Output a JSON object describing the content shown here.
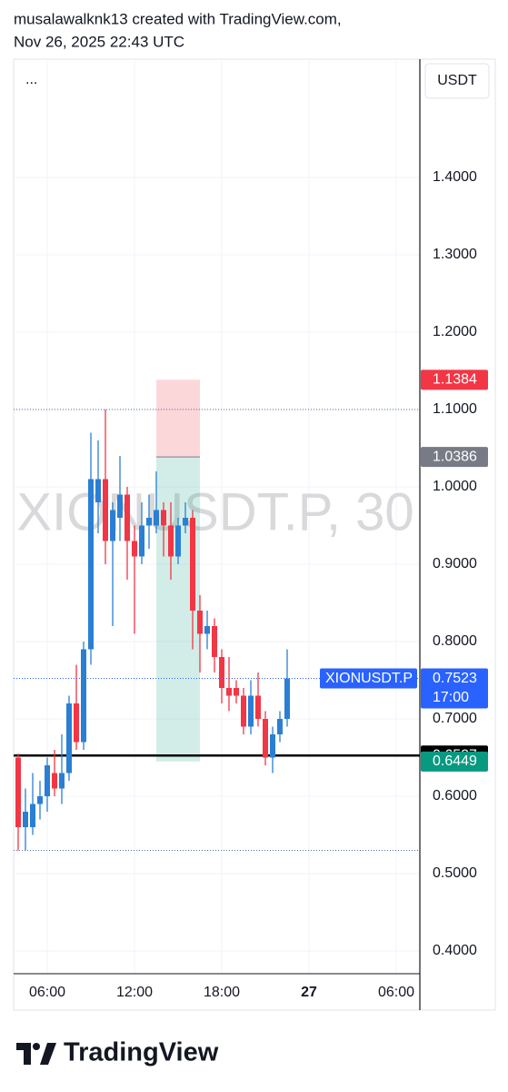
{
  "header_lines": [
    "musalawalknk13 created with TradingView.com,",
    "Nov 26, 2025 22:43 UTC"
  ],
  "logo_text": "TradingView",
  "chart_data": {
    "type": "candlestick",
    "currency": "USDT",
    "menu": "...",
    "watermark": "XIONUSDT.P, 30",
    "symbol": "XIONUSDT.P",
    "countdown": "17:00",
    "up_color": "#2a7fd4",
    "down_color": "#f23645",
    "grid": true,
    "x": [
      4,
      4.5,
      5,
      5.5,
      6,
      6.5,
      7,
      7.5,
      8,
      8.5,
      9,
      9.5,
      10,
      10.5,
      11,
      11.5,
      12,
      12.5,
      13,
      13.5,
      14,
      14.5,
      15,
      15.5,
      16,
      16.5,
      17,
      17.5,
      18,
      18.5,
      19,
      19.5,
      20,
      20.5,
      21,
      21.5,
      22,
      22.5
    ],
    "open": [
      0.65,
      0.56,
      0.56,
      0.59,
      0.6,
      0.63,
      0.61,
      0.63,
      0.72,
      0.67,
      0.79,
      0.98,
      1.01,
      0.93,
      0.96,
      0.99,
      0.93,
      0.91,
      0.95,
      0.95,
      0.97,
      0.95,
      0.91,
      0.95,
      0.96,
      0.84,
      0.81,
      0.82,
      0.78,
      0.74,
      0.74,
      0.73,
      0.69,
      0.73,
      0.7,
      0.65,
      0.68,
      0.7
    ],
    "high": [
      0.655,
      0.61,
      0.63,
      0.62,
      0.65,
      0.66,
      0.68,
      0.73,
      0.77,
      0.8,
      1.07,
      1.06,
      1.1,
      0.98,
      1.04,
      1.0,
      0.95,
      0.98,
      0.99,
      1.02,
      0.98,
      0.98,
      0.96,
      0.98,
      0.97,
      0.86,
      0.84,
      0.83,
      0.79,
      0.78,
      0.75,
      0.74,
      0.75,
      0.76,
      0.71,
      0.69,
      0.71,
      0.79
    ],
    "low": [
      0.53,
      0.53,
      0.55,
      0.57,
      0.58,
      0.6,
      0.59,
      0.62,
      0.66,
      0.66,
      0.77,
      0.94,
      0.9,
      0.82,
      0.93,
      0.88,
      0.81,
      0.9,
      0.92,
      0.94,
      0.91,
      0.88,
      0.9,
      0.94,
      0.79,
      0.76,
      0.79,
      0.76,
      0.72,
      0.71,
      0.72,
      0.68,
      0.68,
      0.69,
      0.64,
      0.63,
      0.67,
      0.69
    ],
    "close": [
      0.56,
      0.58,
      0.59,
      0.6,
      0.64,
      0.61,
      0.63,
      0.72,
      0.67,
      0.79,
      1.01,
      1.01,
      0.93,
      0.97,
      0.99,
      0.93,
      0.91,
      0.95,
      0.96,
      0.97,
      0.95,
      0.91,
      0.95,
      0.96,
      0.84,
      0.81,
      0.82,
      0.78,
      0.74,
      0.73,
      0.73,
      0.69,
      0.73,
      0.7,
      0.65,
      0.68,
      0.7,
      0.7523
    ],
    "xlim": [
      3.6875,
      31.625
    ],
    "xticks": [
      {
        "value": 6,
        "label": "06:00"
      },
      {
        "value": 12,
        "label": "12:00"
      },
      {
        "value": 18,
        "label": "18:00"
      },
      {
        "value": 24,
        "label": "27"
      },
      {
        "value": 30,
        "label": "06:00"
      }
    ],
    "ylim": [
      0.3706,
      1.5529
    ],
    "yticks": [
      {
        "value": 0.4,
        "label": "0.4000"
      },
      {
        "value": 0.5,
        "label": "0.5000"
      },
      {
        "value": 0.6,
        "label": "0.6000"
      },
      {
        "value": 0.7,
        "label": "0.7000"
      },
      {
        "value": 0.8,
        "label": "0.8000"
      },
      {
        "value": 0.9,
        "label": "0.9000"
      },
      {
        "value": 1.0,
        "label": "1.0000"
      },
      {
        "value": 1.1,
        "label": "1.1000"
      },
      {
        "value": 1.2,
        "label": "1.2000"
      },
      {
        "value": 1.3,
        "label": "1.3000"
      },
      {
        "value": 1.4,
        "label": "1.4000"
      }
    ],
    "dotted_levels": [
      1.1,
      0.53
    ],
    "support_level": 0.6527,
    "position": {
      "start": 13.5,
      "end": 16.5,
      "entry": 1.0386,
      "stop": 1.1384,
      "target": 0.6449,
      "stop_color": "#f23645",
      "entry_color": "#787b86",
      "target_color": "#089981"
    },
    "last_price_color": "#2962ff",
    "support_color": "#000000"
  }
}
